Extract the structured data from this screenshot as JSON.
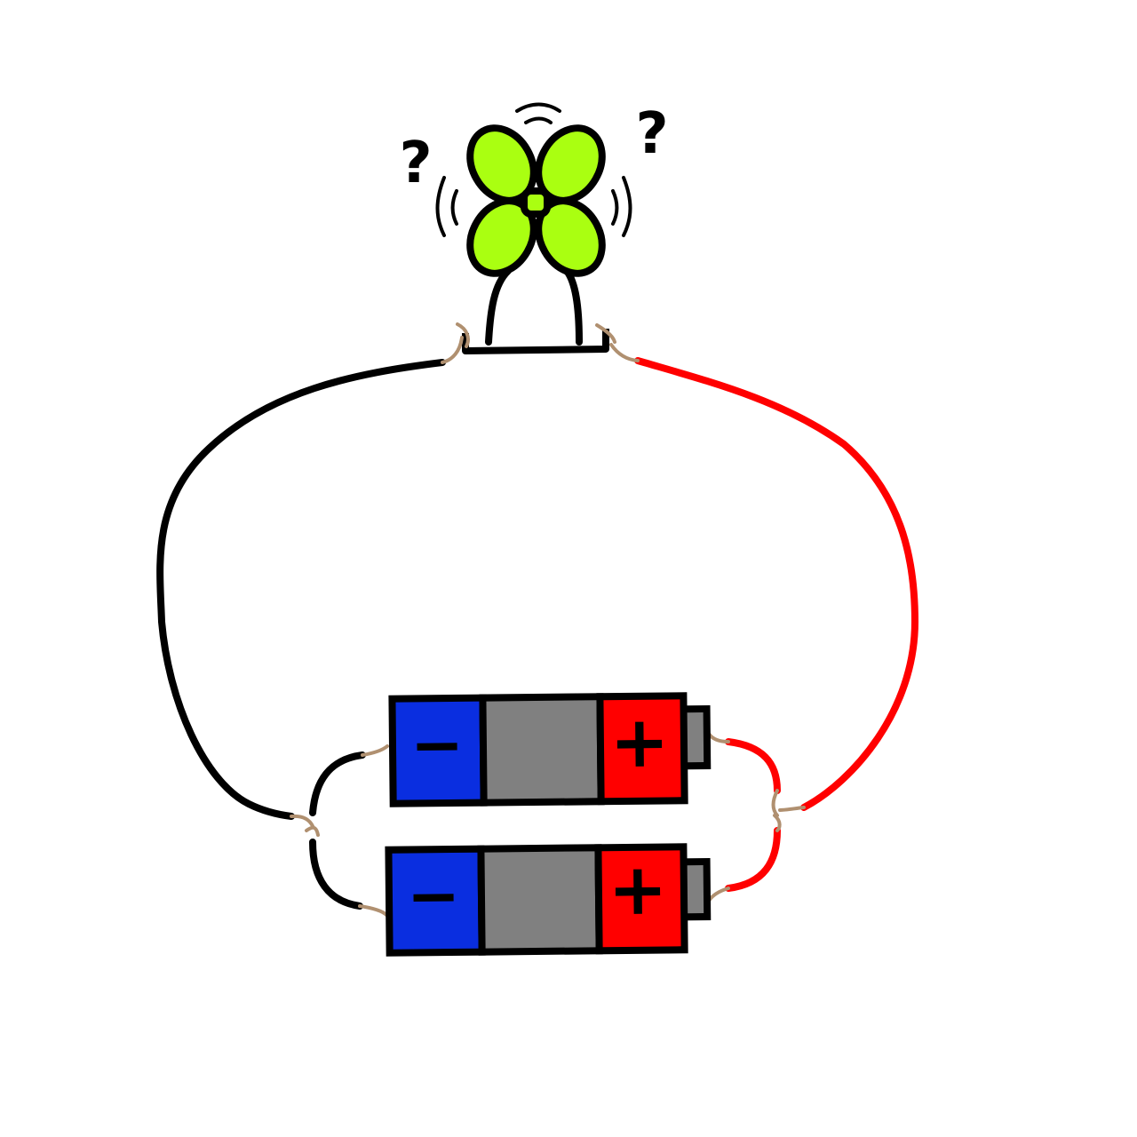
{
  "diagram": {
    "fan": {
      "blade_color": "#aaff11",
      "marks": [
        "?",
        "?"
      ]
    },
    "batteries": [
      {
        "negative_label": "−",
        "positive_label": "+",
        "negative_color": "#0a2ee0",
        "body_color": "#808080",
        "positive_color": "#ff0000"
      },
      {
        "negative_label": "−",
        "positive_label": "+",
        "negative_color": "#0a2ee0",
        "body_color": "#808080",
        "positive_color": "#ff0000"
      }
    ],
    "wires": {
      "negative_color": "#000000",
      "positive_color": "#ff0000",
      "twist_color": "#b09070"
    }
  }
}
